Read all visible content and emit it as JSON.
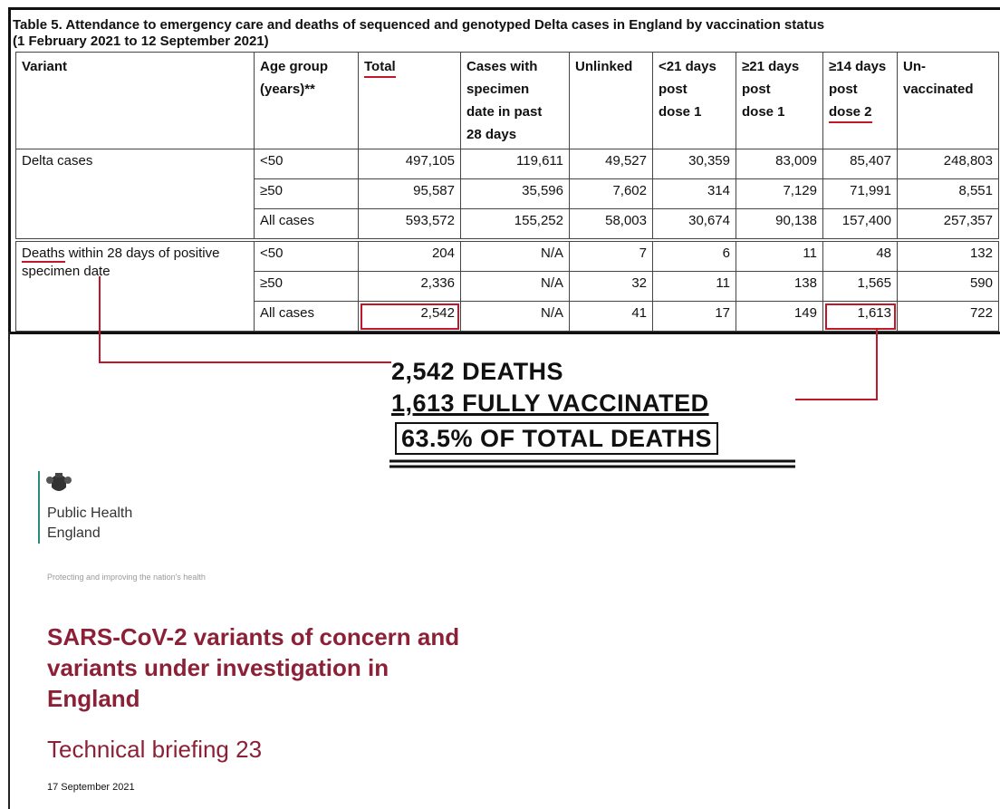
{
  "table": {
    "title": [
      "Table 5. Attendance to emergency care and deaths of sequenced and genotyped Delta cases in England by vaccination status",
      "(1 February 2021 to 12 September 2021)"
    ],
    "headers": [
      [
        "Variant"
      ],
      [
        "Age group",
        "(years)**"
      ],
      [
        "Total"
      ],
      [
        "Cases with",
        "specimen",
        "date in past",
        "28 days"
      ],
      [
        "Unlinked"
      ],
      [
        "<21 days",
        "post",
        "dose 1"
      ],
      [
        "≥21 days",
        "post",
        "dose 1"
      ],
      [
        "≥14 days",
        "post",
        "dose 2"
      ],
      [
        "Un-",
        "vaccinated"
      ]
    ],
    "groups": [
      {
        "label_emphasis": "",
        "label": "Delta cases",
        "rows": [
          {
            "age": "<50",
            "values": [
              "497,105",
              "119,611",
              "49,527",
              "30,359",
              "83,009",
              "85,407",
              "248,803"
            ]
          },
          {
            "age": "≥50",
            "values": [
              "95,587",
              "35,596",
              "7,602",
              "314",
              "7,129",
              "71,991",
              "8,551"
            ]
          },
          {
            "age": "All cases",
            "values": [
              "593,572",
              "155,252",
              "58,003",
              "30,674",
              "90,138",
              "157,400",
              "257,357"
            ]
          }
        ]
      },
      {
        "label_emphasis": "Deaths",
        "label": "within 28 days of positive specimen date",
        "rows": [
          {
            "age": "<50",
            "values": [
              "204",
              "N/A",
              "7",
              "6",
              "11",
              "48",
              "132"
            ]
          },
          {
            "age": "≥50",
            "values": [
              "2,336",
              "N/A",
              "32",
              "11",
              "138",
              "1,565",
              "590"
            ]
          },
          {
            "age": "All cases",
            "values": [
              "2,542",
              "N/A",
              "41",
              "17",
              "149",
              "1,613",
              "722"
            ]
          }
        ]
      }
    ]
  },
  "annotation": {
    "lines": [
      "2,542 DEATHS",
      "1,613 FULLY VACCINATED",
      "63.5% OF TOTAL DEATHS"
    ]
  },
  "document": {
    "org": [
      "Public Health",
      "England"
    ],
    "tagline": "Protecting and improving the nation's health",
    "title": [
      "SARS-CoV-2 variants of concern and",
      "variants under investigation in",
      "England"
    ],
    "subtitle": "Technical briefing 23",
    "date": "17 September 2021"
  }
}
